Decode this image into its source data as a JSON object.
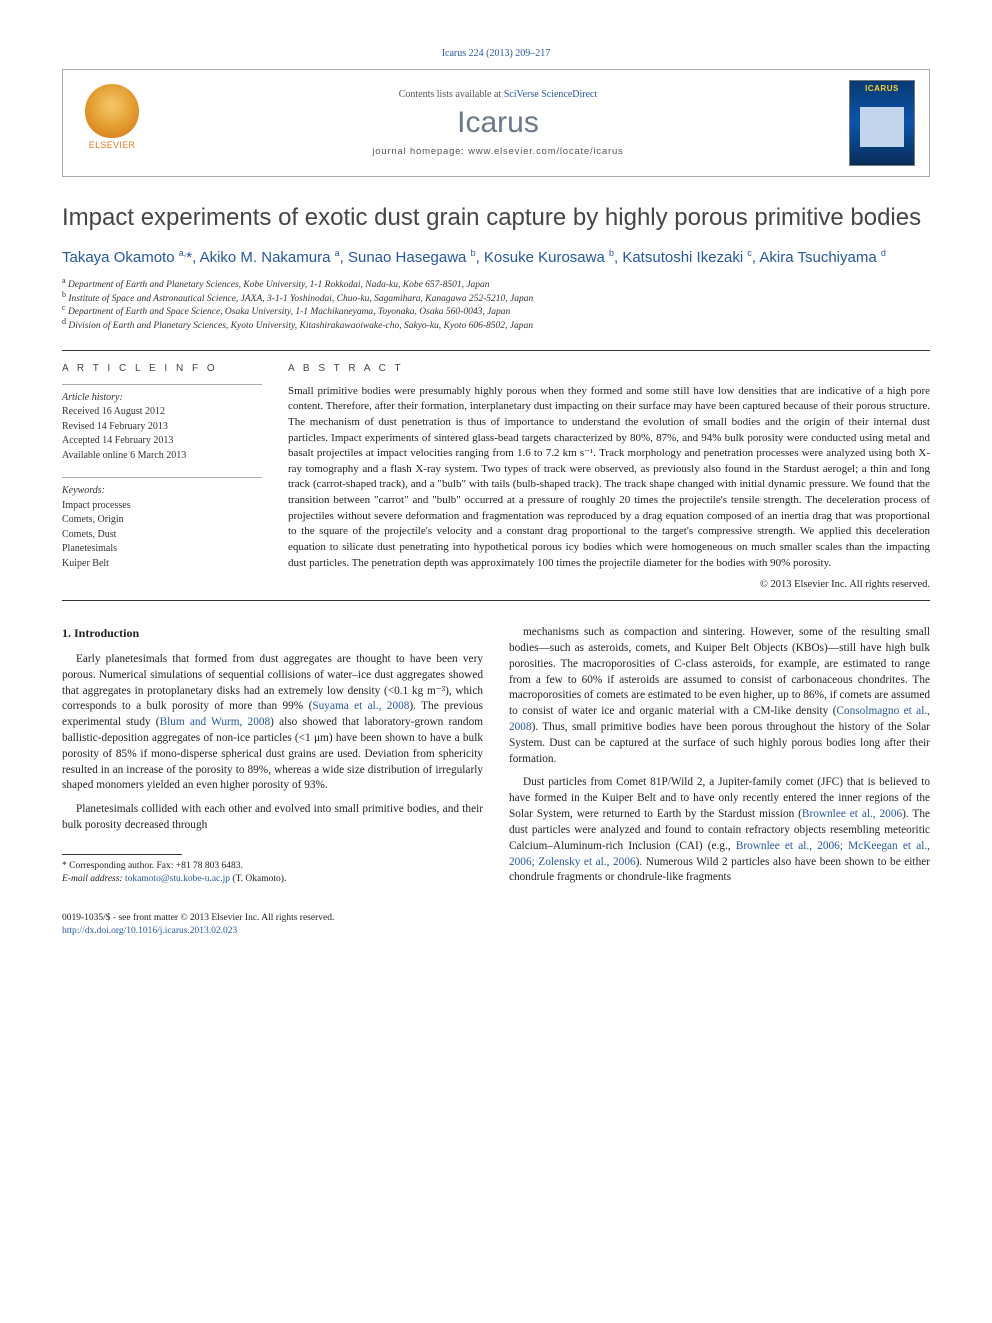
{
  "citation": "Icarus 224 (2013) 209–217",
  "header": {
    "brand": "ELSEVIER",
    "contents_prefix": "Contents lists available at ",
    "contents_link": "SciVerse ScienceDirect",
    "journal": "Icarus",
    "homepage": "journal homepage: www.elsevier.com/locate/icarus",
    "cover_label": "ICARUS"
  },
  "title": "Impact experiments of exotic dust grain capture by highly porous primitive bodies",
  "authors_html": "Takaya Okamoto <sup>a,</sup>*, Akiko M. Nakamura <sup>a</sup>, Sunao Hasegawa <sup>b</sup>, Kosuke Kurosawa <sup>b</sup>, Katsutoshi Ikezaki <sup>c</sup>, Akira Tsuchiyama <sup>d</sup>",
  "affiliations": [
    "a Department of Earth and Planetary Sciences, Kobe University, 1-1 Rokkodai, Nada-ku, Kobe 657-8501, Japan",
    "b Institute of Space and Astronautical Science, JAXA, 3-1-1 Yoshinodai, Chuo-ku, Sagamihara, Kanagawa 252-5210, Japan",
    "c Department of Earth and Space Science, Osaka University, 1-1 Machikaneyama, Toyonaka, Osaka 560-0043, Japan",
    "d Division of Earth and Planetary Sciences, Kyoto University, Kitashirakawaoiwake-cho, Sakyo-ku, Kyoto 606-8502, Japan"
  ],
  "article_info": {
    "head": "A R T I C L E   I N F O",
    "history_label": "Article history:",
    "history": [
      "Received 16 August 2012",
      "Revised 14 February 2013",
      "Accepted 14 February 2013",
      "Available online 6 March 2013"
    ],
    "keywords_label": "Keywords:",
    "keywords": [
      "Impact processes",
      "Comets, Origin",
      "Comets, Dust",
      "Planetesimals",
      "Kuiper Belt"
    ]
  },
  "abstract": {
    "head": "A B S T R A C T",
    "text": "Small primitive bodies were presumably highly porous when they formed and some still have low densities that are indicative of a high pore content. Therefore, after their formation, interplanetary dust impacting on their surface may have been captured because of their porous structure. The mechanism of dust penetration is thus of importance to understand the evolution of small bodies and the origin of their internal dust particles. Impact experiments of sintered glass-bead targets characterized by 80%, 87%, and 94% bulk porosity were conducted using metal and basalt projectiles at impact velocities ranging from 1.6 to 7.2 km s⁻¹. Track morphology and penetration processes were analyzed using both X-ray tomography and a flash X-ray system. Two types of track were observed, as previously also found in the Stardust aerogel; a thin and long track (carrot-shaped track), and a \"bulb\" with tails (bulb-shaped track). The track shape changed with initial dynamic pressure. We found that the transition between \"carrot\" and \"bulb\" occurred at a pressure of roughly 20 times the projectile's tensile strength. The deceleration process of projectiles without severe deformation and fragmentation was reproduced by a drag equation composed of an inertia drag that was proportional to the square of the projectile's velocity and a constant drag proportional to the target's compressive strength. We applied this deceleration equation to silicate dust penetrating into hypothetical porous icy bodies which were homogeneous on much smaller scales than the impacting dust particles. The penetration depth was approximately 100 times the projectile diameter for the bodies with 90% porosity.",
    "copyright": "© 2013 Elsevier Inc. All rights reserved."
  },
  "body": {
    "section_title": "1. Introduction",
    "left": [
      "Early planetesimals that formed from dust aggregates are thought to have been very porous. Numerical simulations of sequential collisions of water–ice dust aggregates showed that aggregates in protoplanetary disks had an extremely low density (<0.1 kg m⁻³), which corresponds to a bulk porosity of more than 99% (<a class='ref'>Suyama et al., 2008</a>). The previous experimental study (<a class='ref'>Blum and Wurm, 2008</a>) also showed that laboratory-grown random ballistic-deposition aggregates of non-ice particles (<1 μm) have been shown to have a bulk porosity of 85% if mono-disperse spherical dust grains are used. Deviation from sphericity resulted in an increase of the porosity to 89%, whereas a wide size distribution of irregularly shaped monomers yielded an even higher porosity of 93%.",
      "Planetesimals collided with each other and evolved into small primitive bodies, and their bulk porosity decreased through"
    ],
    "right": [
      "mechanisms such as compaction and sintering. However, some of the resulting small bodies—such as asteroids, comets, and Kuiper Belt Objects (KBOs)—still have high bulk porosities. The macroporosities of C-class asteroids, for example, are estimated to range from a few to 60% if asteroids are assumed to consist of carbonaceous chondrites. The macroporosities of comets are estimated to be even higher, up to 86%, if comets are assumed to consist of water ice and organic material with a CM-like density (<a class='ref'>Consolmagno et al., 2008</a>). Thus, small primitive bodies have been porous throughout the history of the Solar System. Dust can be captured at the surface of such highly porous bodies long after their formation.",
      "Dust particles from Comet 81P/Wild 2, a Jupiter-family comet (JFC) that is believed to have formed in the Kuiper Belt and to have only recently entered the inner regions of the Solar System, were returned to Earth by the Stardust mission (<a class='ref'>Brownlee et al., 2006</a>). The dust particles were analyzed and found to contain refractory objects resembling meteoritic Calcium–Aluminum-rich Inclusion (CAI) (e.g., <a class='ref'>Brownlee et al., 2006; McKeegan et al., 2006; Zolensky et al., 2006</a>). Numerous Wild 2 particles also have been shown to be either chondrule fragments or chondrule-like fragments"
    ]
  },
  "footnote": {
    "corr": "* Corresponding author. Fax: +81 78 803 6483.",
    "email_label": "E-mail address: ",
    "email": "tokamoto@stu.kobe-u.ac.jp",
    "email_who": " (T. Okamoto)."
  },
  "bottom": {
    "line1": "0019-1035/$ - see front matter © 2013 Elsevier Inc. All rights reserved.",
    "doi": "http://dx.doi.org/10.1016/j.icarus.2013.02.023"
  },
  "colors": {
    "link": "#2757a0",
    "title_gray": "#454545",
    "journal_gray": "#6b788a",
    "brand_orange": "#e57b1f"
  }
}
